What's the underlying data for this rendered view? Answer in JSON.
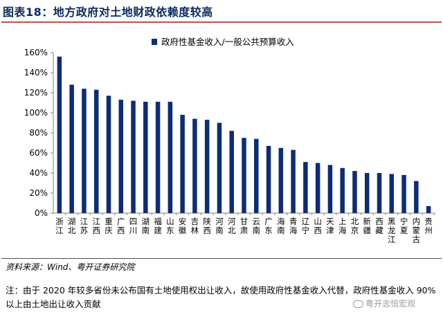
{
  "header": {
    "title": "图表18：地方政府对土地财政依赖度较高"
  },
  "chart_data": {
    "type": "bar",
    "title": "",
    "legend": "政府性基金收入/一般公共预算收入",
    "legend_position": "top-right",
    "xlabel": "",
    "ylabel": "",
    "ylim": [
      0,
      160
    ],
    "y_ticks": [
      "0%",
      "20%",
      "40%",
      "60%",
      "80%",
      "100%",
      "120%",
      "140%",
      "160%"
    ],
    "series_color": "#0d2c78",
    "grid": false,
    "categories": [
      "浙江",
      "湖北",
      "江苏",
      "江西",
      "重庆",
      "广西",
      "四川",
      "湖南",
      "福建",
      "山东",
      "安徽",
      "吉林",
      "陕西",
      "河南",
      "河北",
      "甘肃",
      "云南",
      "广东",
      "海南",
      "青海",
      "辽宁",
      "山西",
      "天津",
      "上海",
      "北京",
      "新疆",
      "西藏",
      "黑龙江",
      "宁夏",
      "内蒙古",
      "贵州"
    ],
    "values": [
      156,
      128,
      124,
      123,
      117,
      113,
      112,
      111,
      111,
      111,
      98,
      94,
      93,
      90,
      82,
      75,
      74,
      67,
      65,
      63,
      51,
      50,
      48,
      45,
      42,
      40,
      40,
      39,
      38,
      32,
      7
    ]
  },
  "footer": {
    "source": "资料来源：Wind、粤开证券研究院",
    "note": "注：由于 2020 年较多省份未公布国有土地使用权出让收入，故使用政府性基金收入代替，政府性基金收入 90%以上由土地出让收入贡献",
    "watermark": "粤开志恒宏观"
  }
}
